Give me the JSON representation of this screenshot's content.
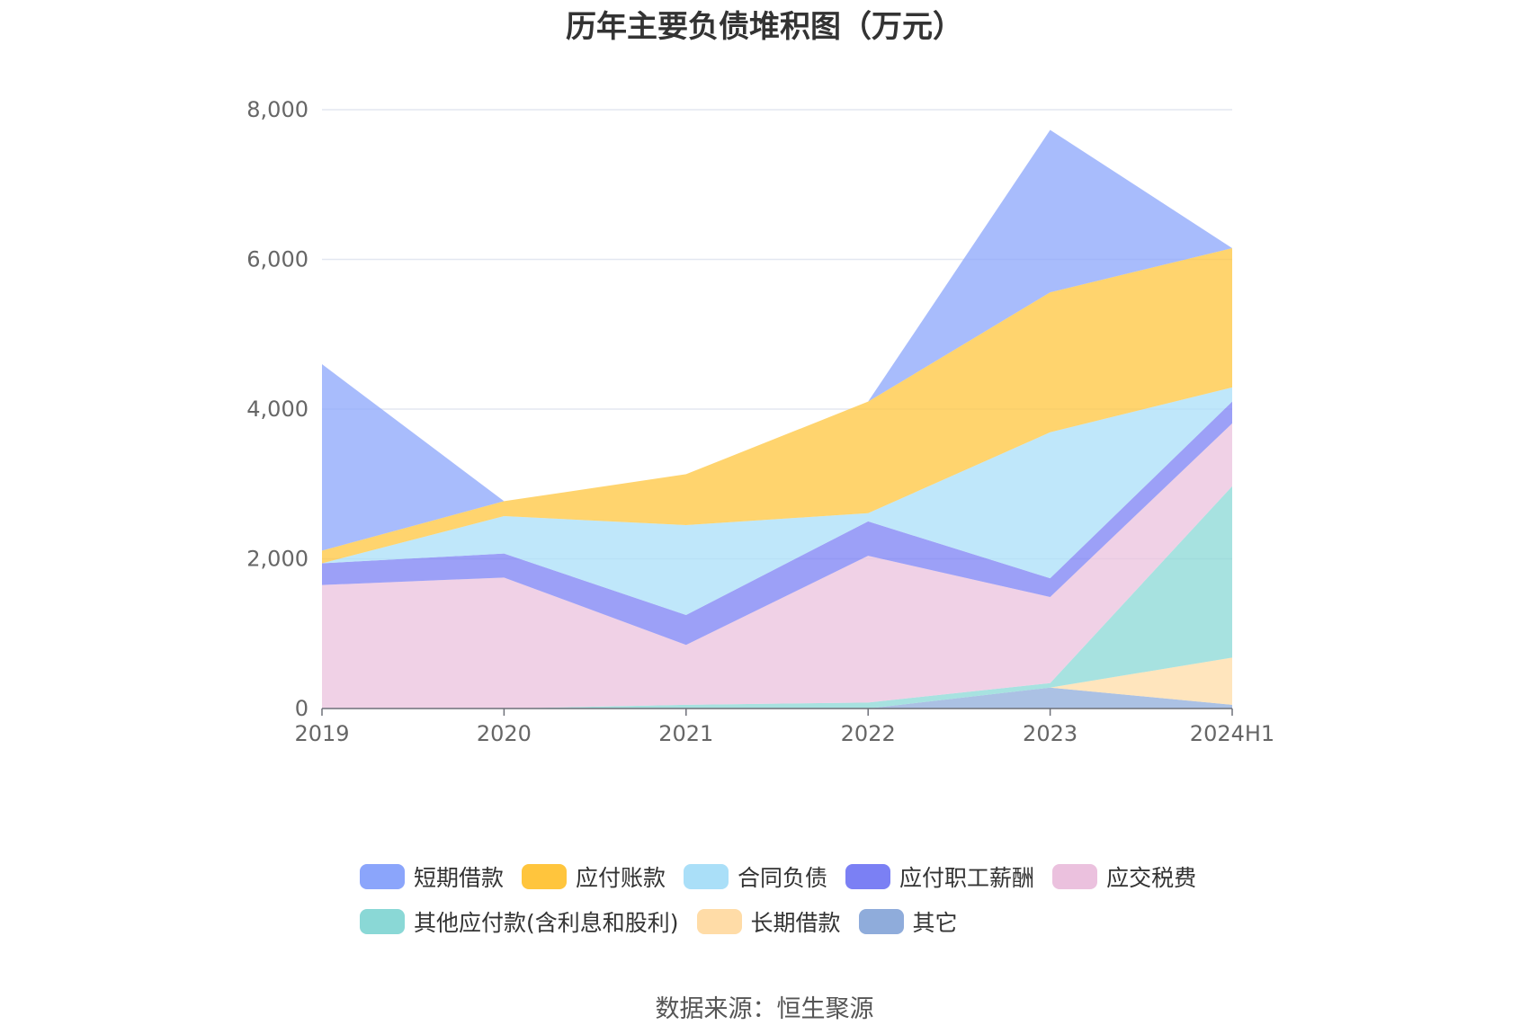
{
  "chart_data": {
    "type": "area",
    "stacked": true,
    "title": "历年主要负债堆积图（万元）",
    "categories": [
      "2019",
      "2020",
      "2021",
      "2022",
      "2023",
      "2024H1"
    ],
    "y_ticks": [
      "0",
      "2,000",
      "4,000",
      "6,000",
      "8,000"
    ],
    "ylim": [
      0,
      8000
    ],
    "grid": "horizontal",
    "legend_position": "bottom",
    "series": [
      {
        "name": "其它",
        "color": "#8facdb",
        "values": [
          0,
          0,
          0,
          0,
          280,
          50
        ]
      },
      {
        "name": "长期借款",
        "color": "#ffdca7",
        "values": [
          0,
          0,
          0,
          0,
          0,
          630
        ]
      },
      {
        "name": "其他应付款(含利息和股利)",
        "color": "#8ad8d6",
        "values": [
          0,
          0,
          50,
          80,
          60,
          2290
        ]
      },
      {
        "name": "应交税费",
        "color": "#ebc1de",
        "values": [
          1650,
          1750,
          800,
          1960,
          1150,
          840
        ]
      },
      {
        "name": "应付职工薪酬",
        "color": "#7b80f4",
        "values": [
          290,
          320,
          400,
          460,
          250,
          290
        ]
      },
      {
        "name": "合同负债",
        "color": "#aadff8",
        "values": [
          0,
          500,
          1200,
          110,
          1950,
          190
        ]
      },
      {
        "name": "应付账款",
        "color": "#ffc53d",
        "values": [
          170,
          200,
          680,
          1490,
          1870,
          1860
        ]
      },
      {
        "name": "短期借款",
        "color": "#8ba5fb",
        "values": [
          2490,
          0,
          0,
          0,
          2170,
          0
        ]
      }
    ],
    "legend_order": [
      "短期借款",
      "应付账款",
      "合同负债",
      "应付职工薪酬",
      "应交税费",
      "其他应付款(含利息和股利)",
      "长期借款",
      "其它"
    ]
  },
  "source_text": "数据来源：恒生聚源"
}
